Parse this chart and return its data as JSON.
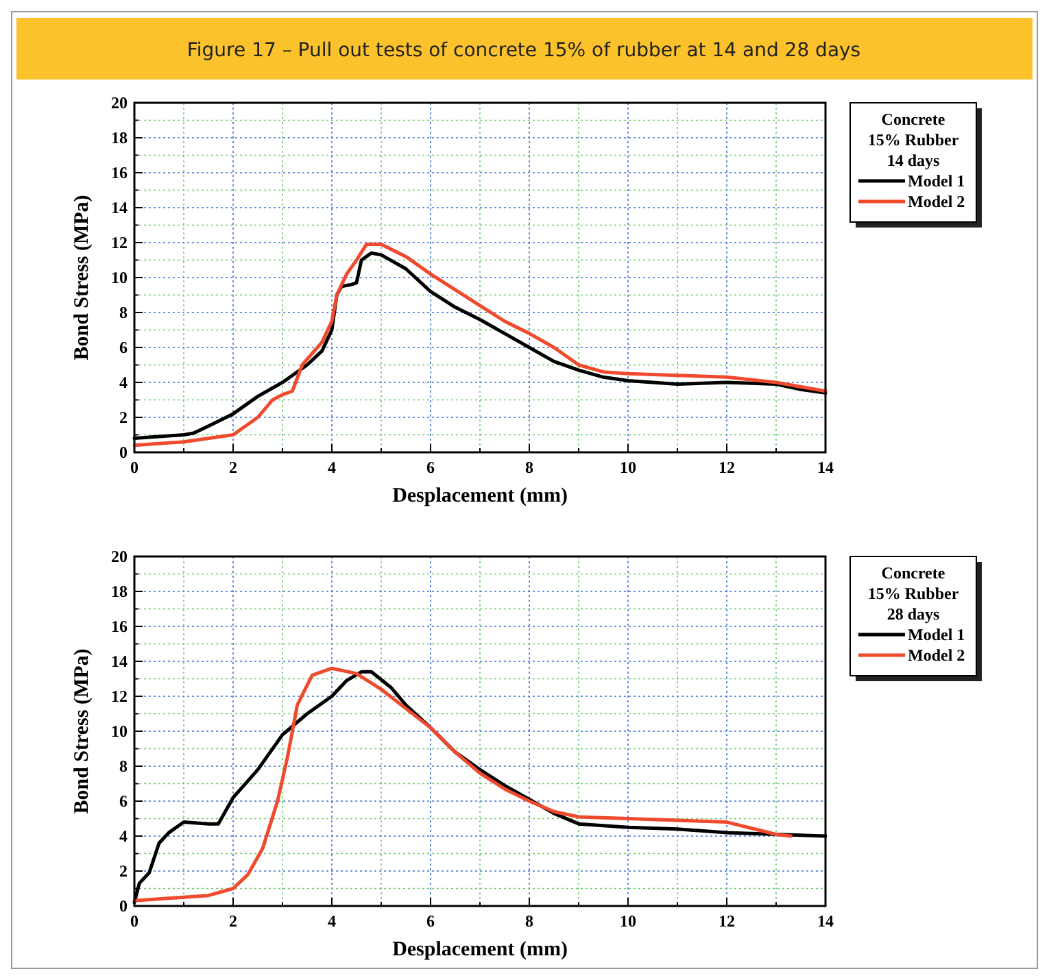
{
  "chart_data": [
    {
      "type": "line",
      "title": "Figure 17 – Pull out tests of concrete 15% of rubber at 14 and 28 days",
      "xlabel": "Desplacement (mm)",
      "ylabel": "Bond Stress (MPa)",
      "legend_title": "Concrete\n15% Rubber\n14 days",
      "legend": "right",
      "grid": true,
      "line_style": "solid",
      "marker": "none",
      "xlim": [
        0,
        14
      ],
      "ylim": [
        0,
        20
      ],
      "xticks": [
        0,
        {
          "value": 1,
          "label": null
        },
        2,
        {
          "value": 3,
          "label": null
        },
        4,
        {
          "value": 5,
          "label": null
        },
        6,
        {
          "value": 7,
          "label": null
        },
        8,
        {
          "value": 9,
          "label": null
        },
        10,
        {
          "value": 11,
          "label": null
        },
        12,
        {
          "value": 13,
          "label": null
        },
        14
      ],
      "yticks": [
        0,
        {
          "value": 1,
          "label": null
        },
        2,
        {
          "value": 3,
          "label": null
        },
        4,
        {
          "value": 5,
          "label": null
        },
        6,
        {
          "value": 7,
          "label": null
        },
        8,
        {
          "value": 9,
          "label": null
        },
        10,
        {
          "value": 11,
          "label": null
        },
        12,
        {
          "value": 13,
          "label": null
        },
        14,
        {
          "value": 15,
          "label": null
        },
        16,
        {
          "value": 17,
          "label": null
        },
        18,
        {
          "value": 19,
          "label": null
        },
        20
      ],
      "series": [
        {
          "name": "Model 1",
          "color": "#000000",
          "x": [
            0,
            0.5,
            1,
            1.2,
            1.5,
            2,
            2.5,
            3,
            3.5,
            3.8,
            4,
            4.1,
            4.2,
            4.4,
            4.5,
            4.6,
            4.8,
            5,
            5.5,
            6,
            6.5,
            7,
            7.5,
            8,
            8.5,
            9,
            9.5,
            10,
            11,
            12,
            13,
            13.5,
            14
          ],
          "values": [
            0.8,
            0.9,
            1,
            1.1,
            1.5,
            2.2,
            3.2,
            4,
            5,
            5.8,
            7,
            9,
            9.5,
            9.6,
            9.7,
            11,
            11.4,
            11.3,
            10.5,
            9.2,
            8.3,
            7.6,
            6.8,
            6,
            5.2,
            4.7,
            4.3,
            4.1,
            3.9,
            4,
            3.9,
            3.6,
            3.4
          ]
        },
        {
          "name": "Model 2",
          "color": "#f04a2e",
          "x": [
            0,
            1,
            2,
            2.5,
            2.8,
            3,
            3.2,
            3.4,
            3.8,
            4,
            4.1,
            4.3,
            4.5,
            4.7,
            5,
            5.5,
            6,
            6.5,
            7,
            7.5,
            8,
            8.5,
            9,
            9.5,
            10,
            11,
            12,
            13,
            14
          ],
          "values": [
            0.4,
            0.6,
            1,
            2,
            3,
            3.3,
            3.5,
            5,
            6.3,
            7.5,
            9,
            10.2,
            11,
            11.9,
            11.9,
            11.2,
            10.2,
            9.3,
            8.4,
            7.5,
            6.8,
            6,
            5,
            4.6,
            4.5,
            4.4,
            4.3,
            4,
            3.5
          ]
        }
      ]
    },
    {
      "type": "line",
      "xlabel": "Desplacement (mm)",
      "ylabel": "Bond Stress (MPa)",
      "legend_title": "Concrete\n15% Rubber\n28 days",
      "legend": "right",
      "grid": true,
      "line_style": "solid",
      "marker": "none",
      "xlim": [
        0,
        14
      ],
      "ylim": [
        0,
        20
      ],
      "xticks": [
        0,
        {
          "value": 1,
          "label": null
        },
        2,
        {
          "value": 3,
          "label": null
        },
        4,
        {
          "value": 5,
          "label": null
        },
        6,
        {
          "value": 7,
          "label": null
        },
        8,
        {
          "value": 9,
          "label": null
        },
        10,
        {
          "value": 11,
          "label": null
        },
        12,
        {
          "value": 13,
          "label": null
        },
        14
      ],
      "yticks": [
        0,
        {
          "value": 1,
          "label": null
        },
        2,
        {
          "value": 3,
          "label": null
        },
        4,
        {
          "value": 5,
          "label": null
        },
        6,
        {
          "value": 7,
          "label": null
        },
        8,
        {
          "value": 9,
          "label": null
        },
        10,
        {
          "value": 11,
          "label": null
        },
        12,
        {
          "value": 13,
          "label": null
        },
        14,
        {
          "value": 15,
          "label": null
        },
        16,
        {
          "value": 17,
          "label": null
        },
        18,
        {
          "value": 19,
          "label": null
        },
        20
      ],
      "series": [
        {
          "name": "Model 1",
          "color": "#000000",
          "x": [
            0,
            0.1,
            0.3,
            0.5,
            0.7,
            1,
            1.5,
            1.7,
            2,
            2.5,
            3,
            3.5,
            4,
            4.3,
            4.6,
            4.8,
            5.2,
            5.5,
            6,
            6.5,
            7,
            7.5,
            8,
            8.5,
            9,
            10,
            11,
            12,
            13,
            14
          ],
          "values": [
            0.2,
            1.3,
            1.9,
            3.6,
            4.2,
            4.8,
            4.7,
            4.7,
            6.2,
            7.8,
            9.8,
            11,
            12,
            12.9,
            13.4,
            13.4,
            12.5,
            11.5,
            10.2,
            8.8,
            7.8,
            6.9,
            6.1,
            5.3,
            4.7,
            4.5,
            4.4,
            4.2,
            4.1,
            4
          ]
        },
        {
          "name": "Model 2",
          "color": "#f04a2e",
          "x": [
            0,
            1,
            1.5,
            2,
            2.3,
            2.6,
            2.9,
            3.1,
            3.3,
            3.6,
            4,
            4.5,
            5,
            5.5,
            6,
            6.5,
            7,
            7.5,
            8,
            8.5,
            9,
            10,
            11,
            12,
            13,
            13.3
          ],
          "values": [
            0.3,
            0.5,
            0.6,
            1,
            1.8,
            3.3,
            6,
            8.5,
            11.5,
            13.2,
            13.6,
            13.3,
            12.4,
            11.3,
            10.2,
            8.8,
            7.6,
            6.7,
            6,
            5.4,
            5.1,
            5,
            4.9,
            4.8,
            4.1,
            4
          ]
        }
      ]
    }
  ]
}
